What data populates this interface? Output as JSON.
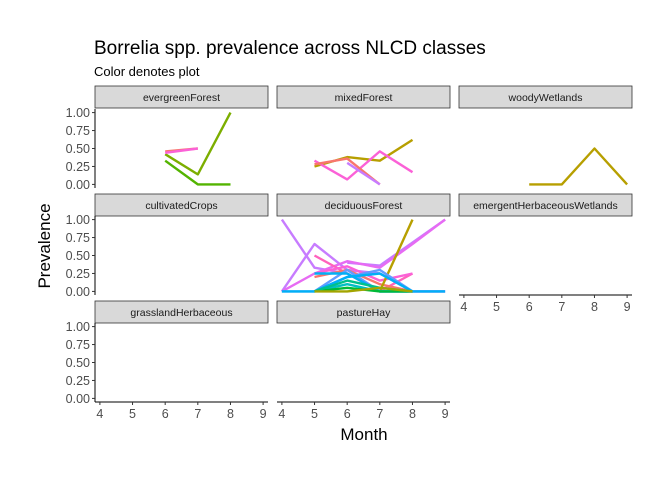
{
  "chart_data": {
    "type": "line",
    "title": "Borrelia spp. prevalence across NLCD classes",
    "subtitle": "Color denotes plot",
    "xlabel": "Month",
    "ylabel": "Prevalence",
    "x_ticks": [
      4,
      5,
      6,
      7,
      8,
      9
    ],
    "y_ticks": [
      0.0,
      0.25,
      0.5,
      0.75,
      1.0
    ],
    "y_tick_labels": [
      "0.00",
      "0.25",
      "0.50",
      "0.75",
      "1.00"
    ],
    "x_tick_labels": [
      "4",
      "5",
      "6",
      "7",
      "8",
      "9"
    ],
    "xlim": [
      3.85,
      9.15
    ],
    "ylim": [
      -0.05,
      1.05
    ],
    "legend": "none",
    "facets": [
      {
        "name": "evergreenForest",
        "series": [
          {
            "color": "#7CAE00",
            "x": [
              6,
              7,
              8
            ],
            "y": [
              0.42,
              0.14,
              1.0
            ]
          },
          {
            "color": "#53B400",
            "x": [
              6,
              7,
              8
            ],
            "y": [
              0.33,
              0.0,
              0.0
            ]
          },
          {
            "color": "#F8766D",
            "x": [
              6,
              7
            ],
            "y": [
              0.46,
              0.5
            ]
          },
          {
            "color": "#FB61D7",
            "x": [
              6,
              7
            ],
            "y": [
              0.44,
              0.5
            ]
          }
        ]
      },
      {
        "name": "mixedForest",
        "series": [
          {
            "color": "#B79F00",
            "x": [
              5,
              6,
              7,
              8
            ],
            "y": [
              0.25,
              0.38,
              0.33,
              0.62
            ]
          },
          {
            "color": "#FB61D7",
            "x": [
              5,
              6,
              7,
              8
            ],
            "y": [
              0.33,
              0.07,
              0.46,
              0.17
            ]
          },
          {
            "color": "#F8766D",
            "x": [
              5,
              6,
              7
            ],
            "y": [
              0.28,
              0.36,
              0.0
            ]
          },
          {
            "color": "#C77CFF",
            "x": [
              6,
              7
            ],
            "y": [
              0.3,
              0.0
            ]
          }
        ]
      },
      {
        "name": "woodyWetlands",
        "series": [
          {
            "color": "#B79F00",
            "x": [
              6,
              7,
              8,
              9
            ],
            "y": [
              0.0,
              0.0,
              0.5,
              0.0
            ]
          }
        ]
      },
      {
        "name": "cultivatedCrops",
        "series": []
      },
      {
        "name": "deciduousForest",
        "series": [
          {
            "color": "#C77CFF",
            "x": [
              4,
              5,
              6,
              7,
              8,
              9
            ],
            "y": [
              1.0,
              0.33,
              0.25,
              0.0,
              0.0,
              0.0
            ]
          },
          {
            "color": "#C77CFF",
            "x": [
              4,
              5,
              6,
              7,
              8,
              9
            ],
            "y": [
              0.0,
              0.66,
              0.3,
              0.25,
              0.0,
              0.0
            ]
          },
          {
            "color": "#C77CFF",
            "x": [
              6,
              7,
              9
            ],
            "y": [
              0.4,
              0.36,
              1.0
            ]
          },
          {
            "color": "#E76BF3",
            "x": [
              4,
              5,
              6,
              7,
              8,
              9
            ],
            "y": [
              0.0,
              0.25,
              0.42,
              0.33,
              0.66,
              1.0
            ]
          },
          {
            "color": "#FF62BC",
            "x": [
              5,
              6,
              7,
              8
            ],
            "y": [
              0.5,
              0.25,
              0.0,
              0.25
            ]
          },
          {
            "color": "#F8766D",
            "x": [
              5,
              6,
              7,
              8
            ],
            "y": [
              0.2,
              0.3,
              0.1,
              0.0
            ]
          },
          {
            "color": "#FB61D7",
            "x": [
              5,
              6,
              7,
              8
            ],
            "y": [
              0.25,
              0.35,
              0.15,
              0.25
            ]
          },
          {
            "color": "#B79F00",
            "x": [
              7,
              8
            ],
            "y": [
              0.0,
              1.0
            ]
          },
          {
            "color": "#619CFF",
            "x": [
              4,
              5,
              6,
              7,
              8,
              9
            ],
            "y": [
              0.0,
              0.0,
              0.3,
              0.0,
              0.0,
              0.0
            ]
          },
          {
            "color": "#619CFF",
            "x": [
              5,
              6,
              7,
              8
            ],
            "y": [
              0.0,
              0.2,
              0.3,
              0.0
            ]
          },
          {
            "color": "#00B0F6",
            "x": [
              5,
              6,
              7,
              8
            ],
            "y": [
              0.25,
              0.25,
              0.0,
              0.0
            ]
          },
          {
            "color": "#00B0F6",
            "x": [
              4,
              5,
              6,
              7,
              8,
              9
            ],
            "y": [
              0.0,
              0.0,
              0.2,
              0.25,
              0.0,
              0.0
            ]
          },
          {
            "color": "#00BFC4",
            "x": [
              5,
              6,
              7,
              8
            ],
            "y": [
              0.0,
              0.1,
              0.0,
              0.0
            ]
          },
          {
            "color": "#00BA38",
            "x": [
              5,
              6,
              7,
              8
            ],
            "y": [
              0.0,
              0.05,
              0.0,
              0.0
            ]
          },
          {
            "color": "#00C08B",
            "x": [
              5,
              6,
              7,
              8
            ],
            "y": [
              0.0,
              0.15,
              0.05,
              0.0
            ]
          },
          {
            "color": "#A3A500",
            "x": [
              5,
              6,
              7,
              8
            ],
            "y": [
              0.0,
              0.0,
              0.05,
              0.0
            ]
          }
        ]
      },
      {
        "name": "emergentHerbaceousWetlands",
        "series": []
      },
      {
        "name": "grasslandHerbaceous",
        "series": []
      },
      {
        "name": "pastureHay",
        "series": []
      }
    ]
  }
}
